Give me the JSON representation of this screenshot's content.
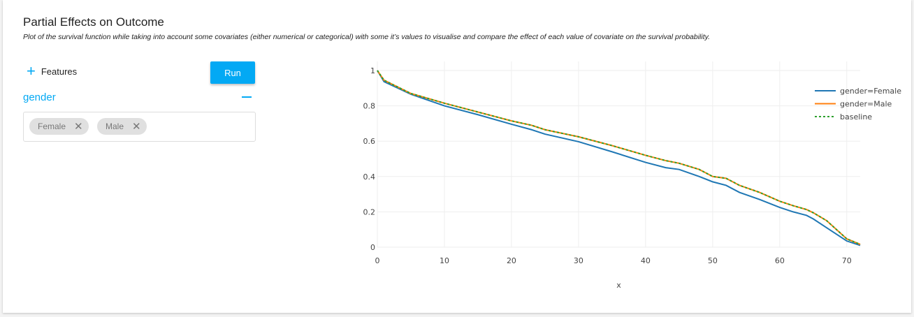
{
  "header": {
    "title": "Partial Effects on Outcome",
    "subtitle": "Plot of the survival function while taking into account some covariates (either numerical or categorical) with some it’s values to visualise and compare the effect of each value of covariate on the survival probability."
  },
  "controls": {
    "features_label": "Features",
    "run_label": "Run",
    "feature_name": "gender",
    "chips": [
      "Female",
      "Male"
    ]
  },
  "chart_data": {
    "type": "line",
    "xlabel": "x",
    "ylabel": "",
    "xlim": [
      0,
      72
    ],
    "ylim": [
      0,
      1
    ],
    "xticks": [
      "0",
      "10",
      "20",
      "30",
      "40",
      "50",
      "60",
      "70"
    ],
    "yticks": [
      "0",
      "0.2",
      "0.4",
      "0.6",
      "0.8",
      "1"
    ],
    "grid": true,
    "legend": "top-right",
    "series": [
      {
        "name": "gender=Female",
        "color": "#1f77b4",
        "dash": false,
        "x": [
          0,
          1,
          5,
          10,
          15,
          20,
          23,
          25,
          30,
          35,
          40,
          43,
          45,
          48,
          50,
          52,
          54,
          57,
          60,
          62,
          64,
          65,
          67,
          70,
          72
        ],
        "y": [
          1,
          0.937,
          0.866,
          0.8,
          0.75,
          0.696,
          0.665,
          0.64,
          0.597,
          0.54,
          0.48,
          0.45,
          0.44,
          0.4,
          0.37,
          0.35,
          0.31,
          0.27,
          0.225,
          0.2,
          0.18,
          0.16,
          0.11,
          0.035,
          0.01
        ]
      },
      {
        "name": "gender=Male",
        "color": "#ff7f0e",
        "dash": false,
        "x": [
          0,
          1,
          5,
          10,
          15,
          20,
          23,
          25,
          30,
          35,
          40,
          43,
          45,
          48,
          50,
          52,
          54,
          57,
          60,
          62,
          64,
          65,
          67,
          70,
          72
        ],
        "y": [
          1,
          0.945,
          0.87,
          0.815,
          0.765,
          0.715,
          0.69,
          0.665,
          0.625,
          0.575,
          0.52,
          0.49,
          0.475,
          0.44,
          0.4,
          0.39,
          0.35,
          0.31,
          0.26,
          0.235,
          0.213,
          0.195,
          0.15,
          0.047,
          0.016
        ]
      },
      {
        "name": "baseline",
        "color": "#2ca02c",
        "dash": true,
        "x": [
          0,
          1,
          5,
          10,
          15,
          20,
          23,
          25,
          30,
          35,
          40,
          43,
          45,
          48,
          50,
          52,
          54,
          57,
          60,
          62,
          64,
          65,
          67,
          70,
          72
        ],
        "y": [
          1,
          0.945,
          0.87,
          0.815,
          0.765,
          0.715,
          0.69,
          0.665,
          0.625,
          0.575,
          0.52,
          0.49,
          0.475,
          0.44,
          0.4,
          0.39,
          0.35,
          0.31,
          0.26,
          0.235,
          0.213,
          0.195,
          0.15,
          0.047,
          0.016
        ]
      }
    ]
  }
}
